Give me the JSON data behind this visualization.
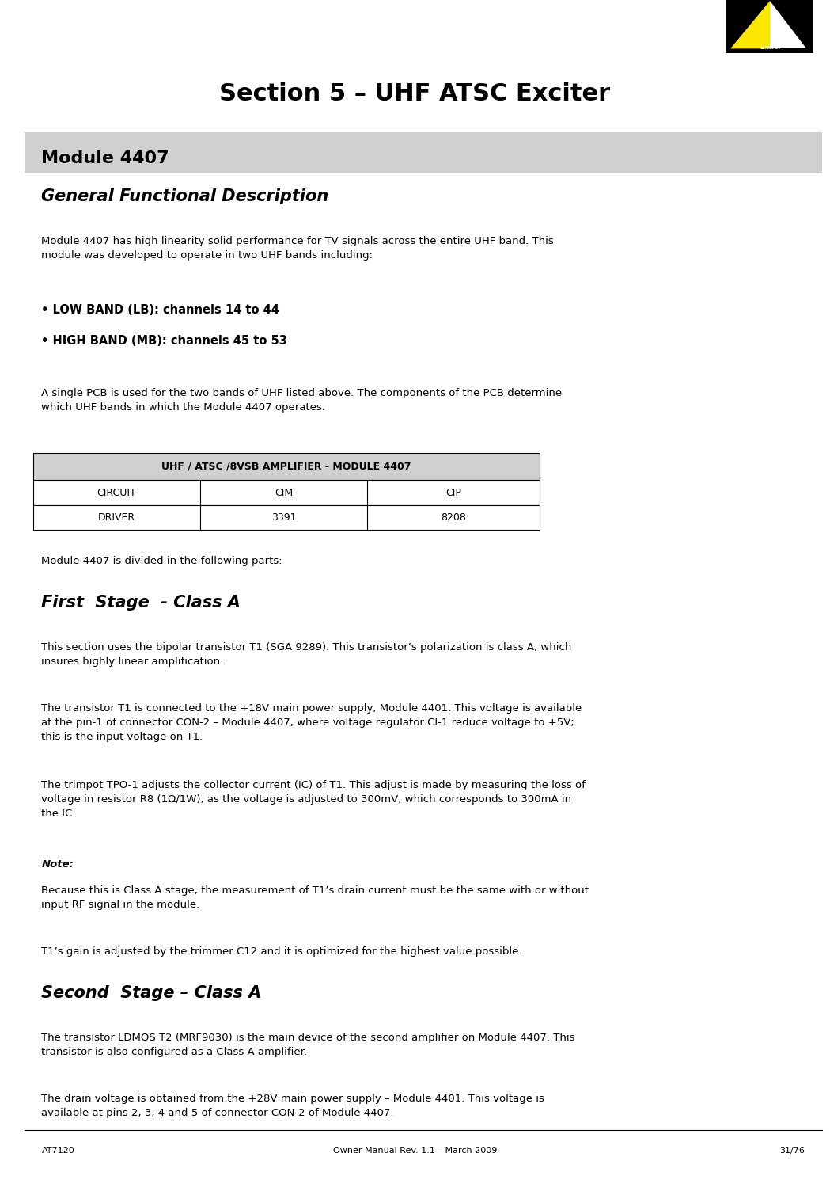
{
  "page_width": 10.49,
  "page_height": 14.9,
  "bg_color": "#ffffff",
  "logo_color_yellow": "#FFE800",
  "logo_color_black": "#000000",
  "header_bg": "#d0d0d0",
  "table_header_bg": "#d0d0d0",
  "title": "Section 5 – UHF ATSC Exciter",
  "section_heading": "Module 4407",
  "subsection1": "General Functional Description",
  "body1": "Module 4407 has high linearity solid performance for TV signals across the entire UHF band. This\nmodule was developed to operate in two UHF bands including:",
  "bullet1": "• LOW BAND (LB): channels 14 to 44",
  "bullet2": "• HIGH BAND (MB): channels 45 to 53",
  "body2": "A single PCB is used for the two bands of UHF listed above. The components of the PCB determine\nwhich UHF bands in which the Module 4407 operates.",
  "table_header": "UHF / ATSC /8VSB AMPLIFIER - MODULE 4407",
  "table_row1": [
    "CIRCUIT",
    "CIM",
    "CIP"
  ],
  "table_row2": [
    "DRIVER",
    "3391",
    "8208"
  ],
  "body3": "Module 4407 is divided in the following parts:",
  "subsection2": "First  Stage  - Class A",
  "body4": "This section uses the bipolar transistor T1 (SGA 9289). This transistor’s polarization is class A, which\ninsures highly linear amplification.",
  "body5": "The transistor T1 is connected to the +18V main power supply, Module 4401. This voltage is available\nat the pin-1 of connector CON-2 – Module 4407, where voltage regulator CI-1 reduce voltage to +5V;\nthis is the input voltage on T1.",
  "body6": "The trimpot TPO-1 adjusts the collector current (IC) of T1. This adjust is made by measuring the loss of\nvoltage in resistor R8 (1Ω/1W), as the voltage is adjusted to 300mV, which corresponds to 300mA in\nthe IC.",
  "note_label": "Note:",
  "note_body": "Because this is Class A stage, the measurement of T1’s drain current must be the same with or without\ninput RF signal in the module.",
  "body7": "T1’s gain is adjusted by the trimmer C12 and it is optimized for the highest value possible.",
  "subsection3": "Second  Stage – Class A",
  "body8": "The transistor LDMOS T2 (MRF9030) is the main device of the second amplifier on Module 4407. This\ntransistor is also configured as a Class A amplifier.",
  "body9": "The drain voltage is obtained from the +28V main power supply – Module 4401. This voltage is\navailable at pins 2, 3, 4 and 5 of connector CON-2 of Module 4407.",
  "footer_left": "AT7120",
  "footer_center": "Owner Manual Rev. 1.1 – March 2009",
  "footer_right": "31/76"
}
